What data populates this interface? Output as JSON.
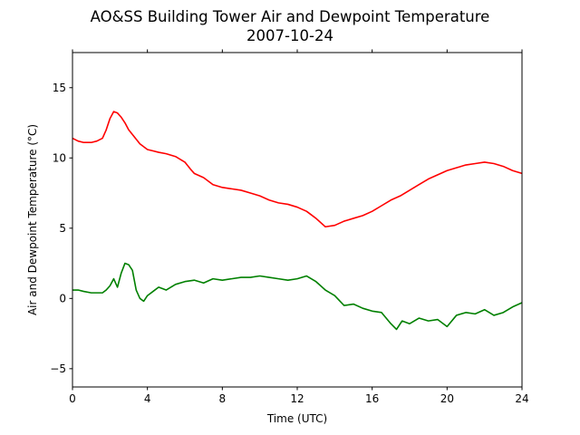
{
  "chart_data": {
    "type": "line",
    "title": "AO&SS Building Tower Air and Dewpoint Temperature",
    "subtitle": "2007-10-24",
    "xlabel": "Time (UTC)",
    "ylabel": "Air and Dewpoint Temperature (°C)",
    "xlim": [
      0,
      24
    ],
    "ylim": [
      -6.3,
      17.5
    ],
    "xticks": [
      0,
      4,
      8,
      12,
      16,
      20,
      24
    ],
    "xtick_labels": [
      "0",
      "4",
      "8",
      "12",
      "16",
      "20",
      "24"
    ],
    "yticks": [
      -5,
      0,
      5,
      10,
      15
    ],
    "ytick_labels": [
      "−5",
      "0",
      "5",
      "10",
      "15"
    ],
    "grid": false,
    "series": [
      {
        "color": "#ff0000",
        "x": [
          0,
          0.3,
          0.6,
          1.0,
          1.3,
          1.6,
          1.8,
          2.0,
          2.2,
          2.4,
          2.6,
          2.8,
          3.0,
          3.3,
          3.6,
          4.0,
          4.3,
          4.6,
          5.0,
          5.5,
          6.0,
          6.3,
          6.5,
          7.0,
          7.5,
          8.0,
          8.5,
          9.0,
          9.5,
          10.0,
          10.5,
          11.0,
          11.5,
          12.0,
          12.5,
          13.0,
          13.5,
          14.0,
          14.5,
          15.0,
          15.5,
          16.0,
          16.5,
          17.0,
          17.5,
          18.0,
          18.5,
          19.0,
          19.5,
          20.0,
          20.5,
          21.0,
          21.5,
          22.0,
          22.5,
          23.0,
          23.5,
          24.0
        ],
        "y": [
          11.4,
          11.2,
          11.1,
          11.1,
          11.2,
          11.4,
          12.0,
          12.8,
          13.3,
          13.2,
          12.9,
          12.5,
          12.0,
          11.5,
          11.0,
          10.6,
          10.5,
          10.4,
          10.3,
          10.1,
          9.7,
          9.2,
          8.9,
          8.6,
          8.1,
          7.9,
          7.8,
          7.7,
          7.5,
          7.3,
          7.0,
          6.8,
          6.7,
          6.5,
          6.2,
          5.7,
          5.1,
          5.2,
          5.5,
          5.7,
          5.9,
          6.2,
          6.6,
          7.0,
          7.3,
          7.7,
          8.1,
          8.5,
          8.8,
          9.1,
          9.3,
          9.5,
          9.6,
          9.7,
          9.6,
          9.4,
          9.1,
          8.9
        ]
      },
      {
        "color": "#008000",
        "x": [
          0,
          0.3,
          0.6,
          1.0,
          1.3,
          1.6,
          1.8,
          2.0,
          2.2,
          2.4,
          2.6,
          2.8,
          3.0,
          3.2,
          3.4,
          3.6,
          3.8,
          4.0,
          4.3,
          4.6,
          5.0,
          5.5,
          6.0,
          6.5,
          7.0,
          7.5,
          8.0,
          8.5,
          9.0,
          9.5,
          10.0,
          10.5,
          11.0,
          11.5,
          12.0,
          12.5,
          13.0,
          13.5,
          14.0,
          14.5,
          15.0,
          15.5,
          16.0,
          16.5,
          17.0,
          17.3,
          17.6,
          18.0,
          18.5,
          19.0,
          19.5,
          20.0,
          20.5,
          21.0,
          21.5,
          22.0,
          22.5,
          23.0,
          23.5,
          24.0
        ],
        "y": [
          0.6,
          0.6,
          0.5,
          0.4,
          0.4,
          0.4,
          0.6,
          0.9,
          1.4,
          0.8,
          1.8,
          2.5,
          2.4,
          2.0,
          0.6,
          0.0,
          -0.2,
          0.2,
          0.5,
          0.8,
          0.6,
          1.0,
          1.2,
          1.3,
          1.1,
          1.4,
          1.3,
          1.4,
          1.5,
          1.5,
          1.6,
          1.5,
          1.4,
          1.3,
          1.4,
          1.6,
          1.2,
          0.6,
          0.2,
          -0.5,
          -0.4,
          -0.7,
          -0.9,
          -1.0,
          -1.8,
          -2.2,
          -1.6,
          -1.8,
          -1.4,
          -1.6,
          -1.5,
          -2.0,
          -1.2,
          -1.0,
          -1.1,
          -0.8,
          -1.2,
          -1.0,
          -0.6,
          -0.3
        ]
      }
    ]
  }
}
